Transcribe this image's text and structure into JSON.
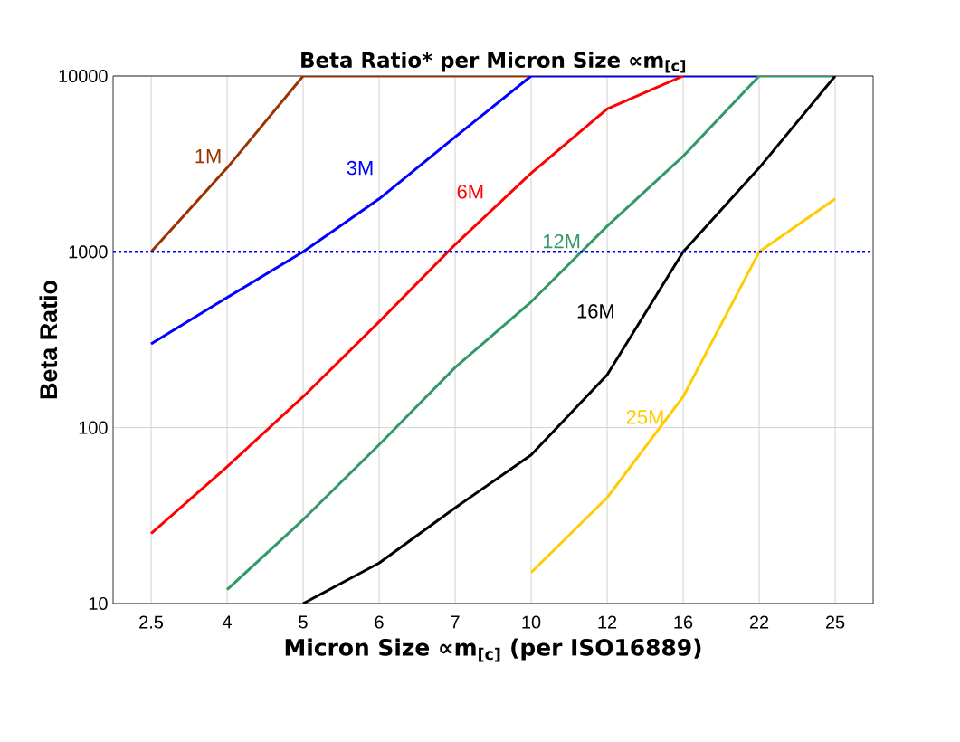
{
  "chart_data": {
    "type": "line",
    "title": "Beta Ratio* per Micron Size ∝m$_{[c]}$",
    "xlabel": "Micron Size ∝m$_{[c]}$ (per ISO16889)",
    "ylabel": "Beta Ratio",
    "categories": [
      "2.5",
      "4",
      "5",
      "6",
      "7",
      "10",
      "12",
      "16",
      "22",
      "25"
    ],
    "series": [
      {
        "name": "1M",
        "color": "#993300",
        "values": [
          1000,
          3000,
          10000,
          10000,
          10000,
          10000,
          null,
          null,
          null,
          null
        ]
      },
      {
        "name": "3M",
        "color": "#0000ff",
        "values": [
          300,
          550,
          1000,
          2000,
          4500,
          10000,
          10000,
          10000,
          10000,
          null
        ]
      },
      {
        "name": "6M",
        "color": "#ff0000",
        "values": [
          25,
          60,
          150,
          400,
          1100,
          2800,
          6500,
          10000,
          null,
          null
        ]
      },
      {
        "name": "12M",
        "color": "#339966",
        "values": [
          null,
          12,
          30,
          80,
          220,
          520,
          1400,
          3500,
          10000,
          10000
        ]
      },
      {
        "name": "16M",
        "color": "#000000",
        "values": [
          null,
          null,
          10,
          17,
          35,
          70,
          200,
          1000,
          3000,
          10000
        ]
      },
      {
        "name": "25M",
        "color": "#ffcc00",
        "values": [
          null,
          null,
          null,
          null,
          null,
          15,
          40,
          150,
          1000,
          2000
        ]
      }
    ],
    "ylim": [
      10,
      10000
    ],
    "yticks": [
      10,
      100,
      1000,
      10000
    ],
    "log": "y",
    "grid": true,
    "legend": false,
    "marker": "none",
    "line_style": "solid",
    "ref_lines": [
      {
        "axis": "y",
        "value": 1000,
        "color": "#0000ff",
        "line_style": "dotted"
      }
    ]
  }
}
